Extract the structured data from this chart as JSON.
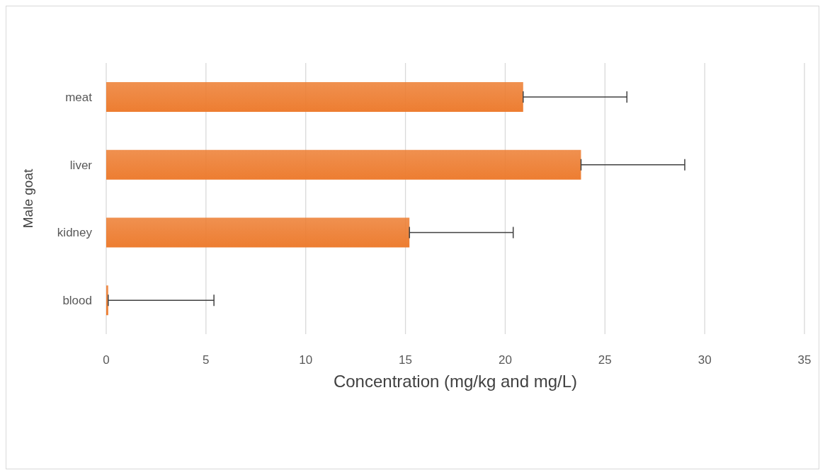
{
  "chart_data": {
    "type": "bar",
    "orientation": "horizontal",
    "categories": [
      "meat",
      "liver",
      "kidney",
      "blood"
    ],
    "values": [
      20.9,
      23.8,
      15.2,
      0.1
    ],
    "errors": [
      [
        20.9,
        26.1
      ],
      [
        23.8,
        29.0
      ],
      [
        15.2,
        20.4
      ],
      [
        0.1,
        5.4
      ]
    ],
    "color": "#ed7d31",
    "xlabel": "Concentration (mg/kg and mg/L)",
    "ylabel": "Male goat",
    "xlim": [
      0,
      35
    ],
    "xticks": [
      0,
      5,
      10,
      15,
      20,
      25,
      30,
      35
    ],
    "grid": "x",
    "legend": false
  }
}
